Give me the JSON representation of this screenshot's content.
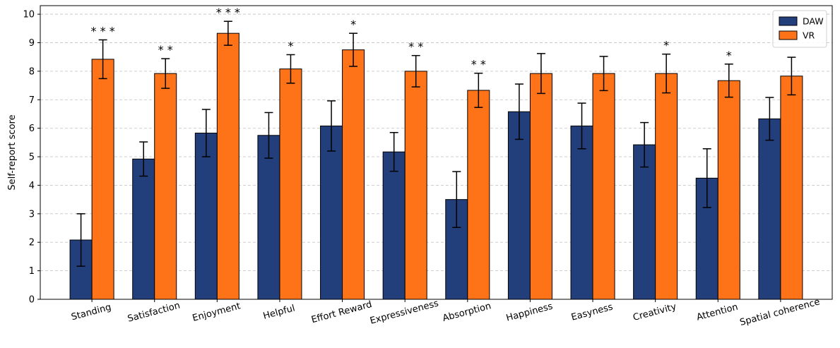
{
  "chart_data": {
    "type": "bar",
    "ylabel": "Self-report score",
    "xlabel": "",
    "ylim": [
      0,
      10.3
    ],
    "yticks": [
      0,
      1,
      2,
      3,
      4,
      5,
      6,
      7,
      8,
      9,
      10
    ],
    "grid": "y-dashed",
    "legend_position": "top-right",
    "categories": [
      "Standing",
      "Satisfaction",
      "Enjoyment",
      "Helpful",
      "Effort Reward",
      "Expressiveness",
      "Absorption",
      "Happiness",
      "Easyness",
      "Creativity",
      "Attention",
      "Spatial coherence"
    ],
    "series": [
      {
        "name": "DAW",
        "color": "#223f7c",
        "values": [
          2.08,
          4.92,
          5.83,
          5.75,
          6.08,
          5.17,
          3.5,
          6.58,
          6.08,
          5.42,
          4.25,
          6.33
        ],
        "errors": [
          0.92,
          0.6,
          0.83,
          0.8,
          0.88,
          0.68,
          0.98,
          0.97,
          0.8,
          0.78,
          1.03,
          0.75
        ]
      },
      {
        "name": "VR",
        "color": "#ff7318",
        "values": [
          8.42,
          7.92,
          9.33,
          8.08,
          8.75,
          8.0,
          7.33,
          7.92,
          7.92,
          7.92,
          7.67,
          7.83
        ],
        "errors": [
          0.68,
          0.52,
          0.42,
          0.5,
          0.58,
          0.55,
          0.6,
          0.7,
          0.6,
          0.68,
          0.58,
          0.66
        ]
      }
    ],
    "significance": [
      "* * *",
      "* *",
      "* * *",
      "*",
      "*",
      "* *",
      "* *",
      "",
      "",
      "*",
      "*",
      ""
    ]
  }
}
